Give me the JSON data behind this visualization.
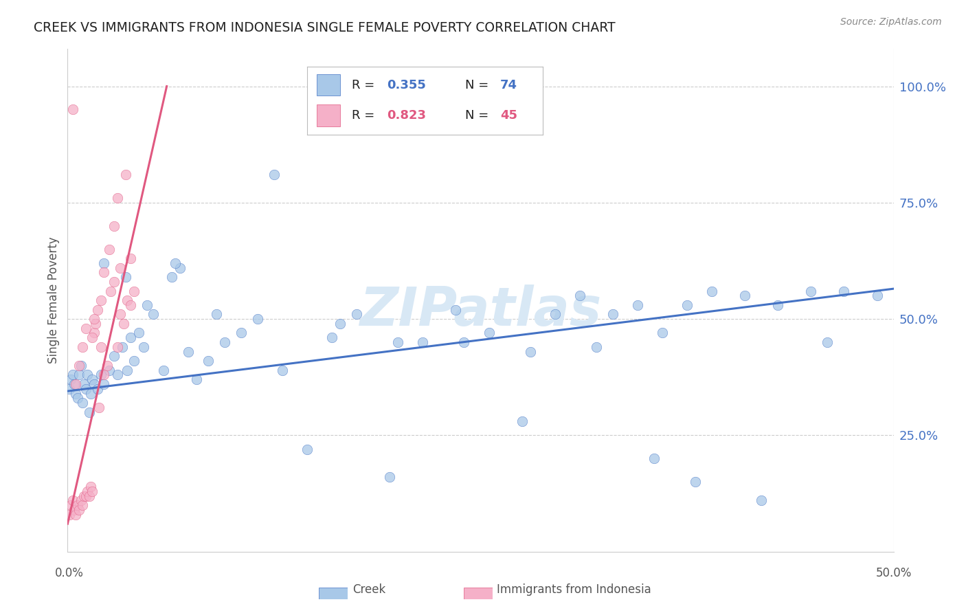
{
  "title": "CREEK VS IMMIGRANTS FROM INDONESIA SINGLE FEMALE POVERTY CORRELATION CHART",
  "source": "Source: ZipAtlas.com",
  "ylabel": "Single Female Poverty",
  "ytick_labels": [
    "100.0%",
    "75.0%",
    "50.0%",
    "25.0%"
  ],
  "ytick_values": [
    1.0,
    0.75,
    0.5,
    0.25
  ],
  "xtick_labels": [
    "0.0%",
    "50.0%"
  ],
  "xlim": [
    0.0,
    0.5
  ],
  "ylim": [
    0.0,
    1.08
  ],
  "legend_creek_r": "0.355",
  "legend_creek_n": "74",
  "legend_indo_r": "0.823",
  "legend_indo_n": "45",
  "creek_color": "#a8c8e8",
  "indo_color": "#f5b0c8",
  "creek_line_color": "#4472c4",
  "indo_line_color": "#e05880",
  "watermark": "ZIPatlas",
  "watermark_color": "#d8e8f5",
  "background_color": "#ffffff",
  "grid_color": "#cccccc",
  "title_color": "#222222",
  "axis_label_color": "#555555",
  "right_axis_color": "#4472c4",
  "legend_text_black": "#222222",
  "creek_scatter_x": [
    0.001,
    0.002,
    0.003,
    0.004,
    0.005,
    0.006,
    0.007,
    0.008,
    0.009,
    0.01,
    0.011,
    0.012,
    0.013,
    0.014,
    0.015,
    0.016,
    0.018,
    0.02,
    0.022,
    0.025,
    0.028,
    0.03,
    0.033,
    0.036,
    0.038,
    0.04,
    0.043,
    0.046,
    0.048,
    0.052,
    0.058,
    0.063,
    0.068,
    0.073,
    0.078,
    0.085,
    0.095,
    0.105,
    0.115,
    0.125,
    0.145,
    0.16,
    0.175,
    0.195,
    0.215,
    0.235,
    0.255,
    0.275,
    0.295,
    0.31,
    0.33,
    0.345,
    0.36,
    0.375,
    0.39,
    0.41,
    0.43,
    0.45,
    0.47,
    0.49,
    0.022,
    0.035,
    0.065,
    0.09,
    0.13,
    0.165,
    0.2,
    0.24,
    0.28,
    0.32,
    0.355,
    0.38,
    0.42,
    0.46
  ],
  "creek_scatter_y": [
    0.35,
    0.37,
    0.38,
    0.36,
    0.34,
    0.33,
    0.38,
    0.4,
    0.32,
    0.36,
    0.35,
    0.38,
    0.3,
    0.34,
    0.37,
    0.36,
    0.35,
    0.38,
    0.36,
    0.39,
    0.42,
    0.38,
    0.44,
    0.39,
    0.46,
    0.41,
    0.47,
    0.44,
    0.53,
    0.51,
    0.39,
    0.59,
    0.61,
    0.43,
    0.37,
    0.41,
    0.45,
    0.47,
    0.5,
    0.81,
    0.22,
    0.46,
    0.51,
    0.16,
    0.45,
    0.52,
    0.47,
    0.28,
    0.51,
    0.55,
    0.51,
    0.53,
    0.47,
    0.53,
    0.56,
    0.55,
    0.53,
    0.56,
    0.56,
    0.55,
    0.62,
    0.59,
    0.62,
    0.51,
    0.39,
    0.49,
    0.45,
    0.45,
    0.43,
    0.44,
    0.2,
    0.15,
    0.11,
    0.45
  ],
  "indo_scatter_x": [
    0.001,
    0.002,
    0.003,
    0.004,
    0.005,
    0.006,
    0.007,
    0.008,
    0.009,
    0.01,
    0.011,
    0.012,
    0.013,
    0.014,
    0.015,
    0.016,
    0.017,
    0.018,
    0.019,
    0.02,
    0.022,
    0.024,
    0.026,
    0.028,
    0.03,
    0.032,
    0.034,
    0.036,
    0.038,
    0.04,
    0.015,
    0.016,
    0.02,
    0.022,
    0.025,
    0.028,
    0.03,
    0.032,
    0.035,
    0.038,
    0.005,
    0.007,
    0.009,
    0.011,
    0.003
  ],
  "indo_scatter_y": [
    0.08,
    0.1,
    0.11,
    0.09,
    0.08,
    0.1,
    0.09,
    0.11,
    0.1,
    0.12,
    0.12,
    0.13,
    0.12,
    0.14,
    0.13,
    0.47,
    0.49,
    0.52,
    0.31,
    0.44,
    0.38,
    0.4,
    0.56,
    0.58,
    0.44,
    0.51,
    0.49,
    0.54,
    0.53,
    0.56,
    0.46,
    0.5,
    0.54,
    0.6,
    0.65,
    0.7,
    0.76,
    0.61,
    0.81,
    0.63,
    0.36,
    0.4,
    0.44,
    0.48,
    0.95
  ],
  "creek_trend_x": [
    0.0,
    0.5
  ],
  "creek_trend_y": [
    0.345,
    0.565
  ],
  "indo_trend_x": [
    0.0,
    0.06
  ],
  "indo_trend_y": [
    0.06,
    1.0
  ]
}
